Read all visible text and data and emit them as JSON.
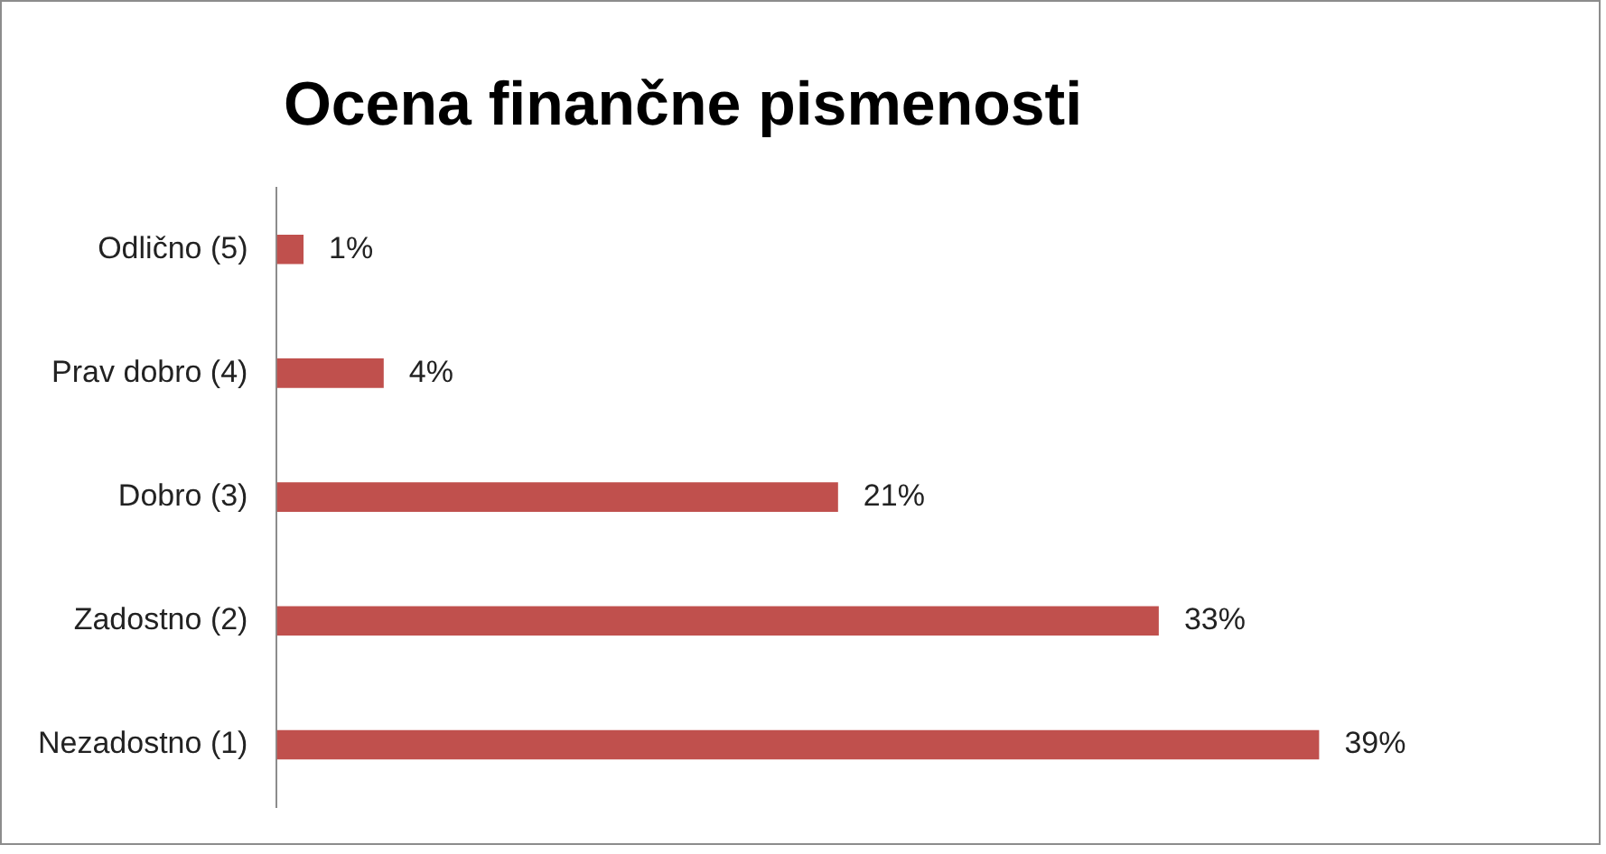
{
  "chart_data": {
    "type": "bar",
    "orientation": "horizontal",
    "title": "Ocena finančne pismenosti",
    "categories": [
      "Odlično (5)",
      "Prav dobro (4)",
      "Dobro (3)",
      "Zadostno (2)",
      "Nezadostno (1)"
    ],
    "values": [
      1,
      4,
      21,
      33,
      39
    ],
    "color": "#c0504d",
    "value_labels": [
      "1%",
      "4%",
      "21%",
      "33%",
      "39%"
    ],
    "tick_labels": "y",
    "legend": false
  }
}
